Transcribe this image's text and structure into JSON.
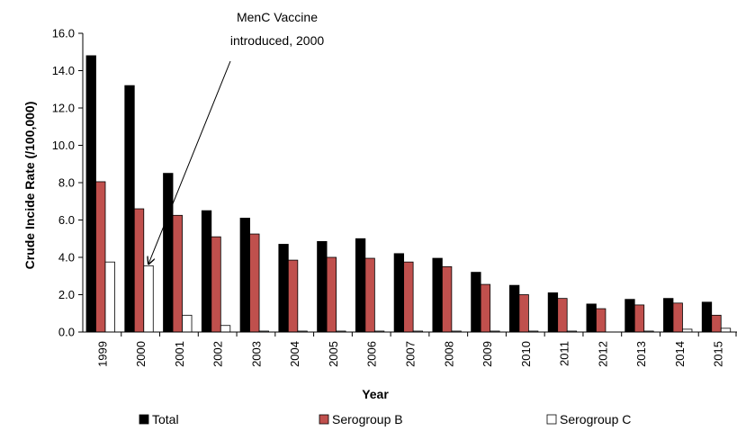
{
  "chart_data": {
    "type": "bar",
    "title": "",
    "xlabel": "Year",
    "ylabel": "Crude Incide Rate (/100,000)",
    "ylim": [
      0,
      16
    ],
    "yticks": [
      "0.0",
      "2.0",
      "4.0",
      "6.0",
      "8.0",
      "10.0",
      "12.0",
      "14.0",
      "16.0"
    ],
    "grid": false,
    "legend_position": "bottom",
    "categories": [
      "1999",
      "2000",
      "2001",
      "2002",
      "2003",
      "2004",
      "2005",
      "2006",
      "2007",
      "2008",
      "2009",
      "2010",
      "2011",
      "2012",
      "2013",
      "2014",
      "2015"
    ],
    "series": [
      {
        "name": "Total",
        "color": "#000000",
        "values": [
          14.8,
          13.2,
          8.5,
          6.5,
          6.1,
          4.7,
          4.85,
          5.0,
          4.2,
          3.95,
          3.2,
          2.5,
          2.1,
          1.5,
          1.75,
          1.8,
          1.6
        ]
      },
      {
        "name": "Serogroup B",
        "color": "#c0504d",
        "values": [
          8.05,
          6.6,
          6.25,
          5.1,
          5.25,
          3.85,
          4.0,
          3.95,
          3.75,
          3.5,
          2.55,
          2.0,
          1.8,
          1.25,
          1.45,
          1.55,
          0.9
        ]
      },
      {
        "name": "Serogroup C",
        "color": "#ffffff",
        "values": [
          3.75,
          3.55,
          0.9,
          0.35,
          0.05,
          0.05,
          0.05,
          0.05,
          0.05,
          0.05,
          0.05,
          0.05,
          0.05,
          0.0,
          0.05,
          0.15,
          0.2
        ]
      }
    ],
    "annotation": {
      "lines": [
        "MenC Vaccine",
        "introduced, 2000"
      ],
      "target_category": "2000",
      "target_series": "Serogroup C"
    }
  }
}
